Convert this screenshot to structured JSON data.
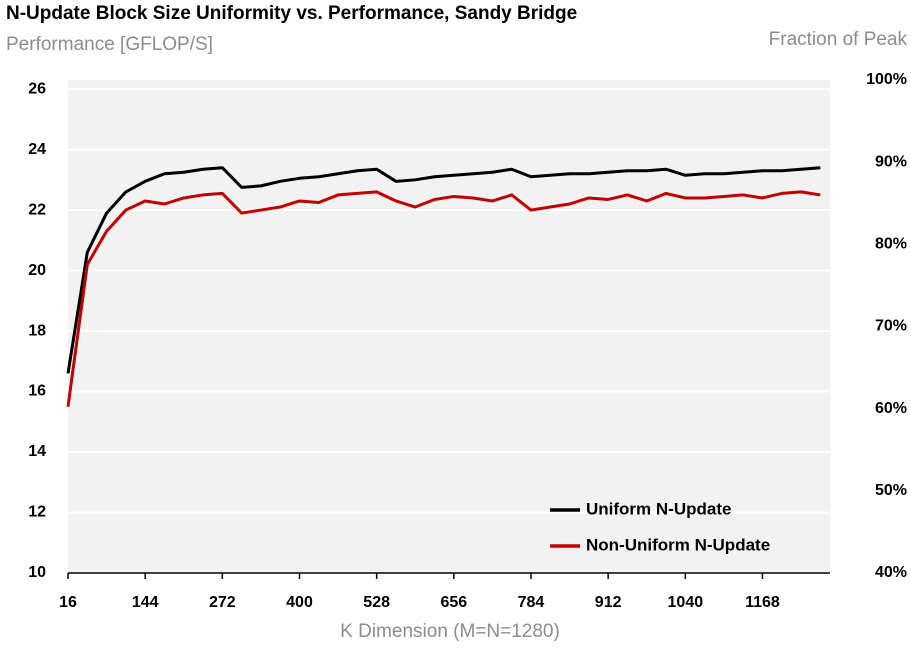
{
  "chart_data": {
    "type": "line",
    "title": "N-Update Block Size Uniformity vs. Performance, Sandy Bridge",
    "ylabel": "Performance [GFLOP/S]",
    "y2label": "Fraction of Peak",
    "xlabel": "K Dimension (M=N=1280)",
    "x": [
      16,
      48,
      80,
      112,
      144,
      176,
      208,
      240,
      272,
      304,
      336,
      368,
      400,
      432,
      464,
      496,
      528,
      560,
      592,
      624,
      656,
      688,
      720,
      752,
      784,
      816,
      848,
      880,
      912,
      944,
      976,
      1008,
      1040,
      1072,
      1104,
      1136,
      1168,
      1200,
      1232,
      1264
    ],
    "series": [
      {
        "name": "Uniform N-Update",
        "color": "#000000",
        "values": [
          16.6,
          20.6,
          21.9,
          22.6,
          22.95,
          23.2,
          23.25,
          23.35,
          23.4,
          22.75,
          22.8,
          22.95,
          23.05,
          23.1,
          23.2,
          23.3,
          23.35,
          22.95,
          23.0,
          23.1,
          23.15,
          23.2,
          23.25,
          23.35,
          23.1,
          23.15,
          23.2,
          23.2,
          23.25,
          23.3,
          23.3,
          23.35,
          23.15,
          23.2,
          23.2,
          23.25,
          23.3,
          23.3,
          23.35,
          23.4
        ]
      },
      {
        "name": "Non-Uniform N-Update",
        "color": "#c00000",
        "values": [
          15.5,
          20.2,
          21.3,
          22.0,
          22.3,
          22.2,
          22.4,
          22.5,
          22.55,
          21.9,
          22.0,
          22.1,
          22.3,
          22.25,
          22.5,
          22.55,
          22.6,
          22.3,
          22.1,
          22.35,
          22.45,
          22.4,
          22.3,
          22.5,
          22.0,
          22.1,
          22.2,
          22.4,
          22.35,
          22.5,
          22.3,
          22.55,
          22.4,
          22.4,
          22.45,
          22.5,
          22.4,
          22.55,
          22.6,
          22.5
        ]
      }
    ],
    "xlim": [
      16,
      1280
    ],
    "xticks": [
      16,
      144,
      272,
      400,
      528,
      656,
      784,
      912,
      1040,
      1168
    ],
    "ylim": [
      10,
      26.3
    ],
    "yticks": [
      10,
      12,
      14,
      16,
      18,
      20,
      22,
      24,
      26
    ],
    "y2lim": [
      40,
      100
    ],
    "y2ticks": [
      {
        "value": 40,
        "label": "40%"
      },
      {
        "value": 50,
        "label": "50%"
      },
      {
        "value": 60,
        "label": "60%"
      },
      {
        "value": 70,
        "label": "70%"
      },
      {
        "value": 80,
        "label": "80%"
      },
      {
        "value": 90,
        "label": "90%"
      },
      {
        "value": 100,
        "label": "100%"
      }
    ],
    "grid": true,
    "legend": "lower right"
  }
}
